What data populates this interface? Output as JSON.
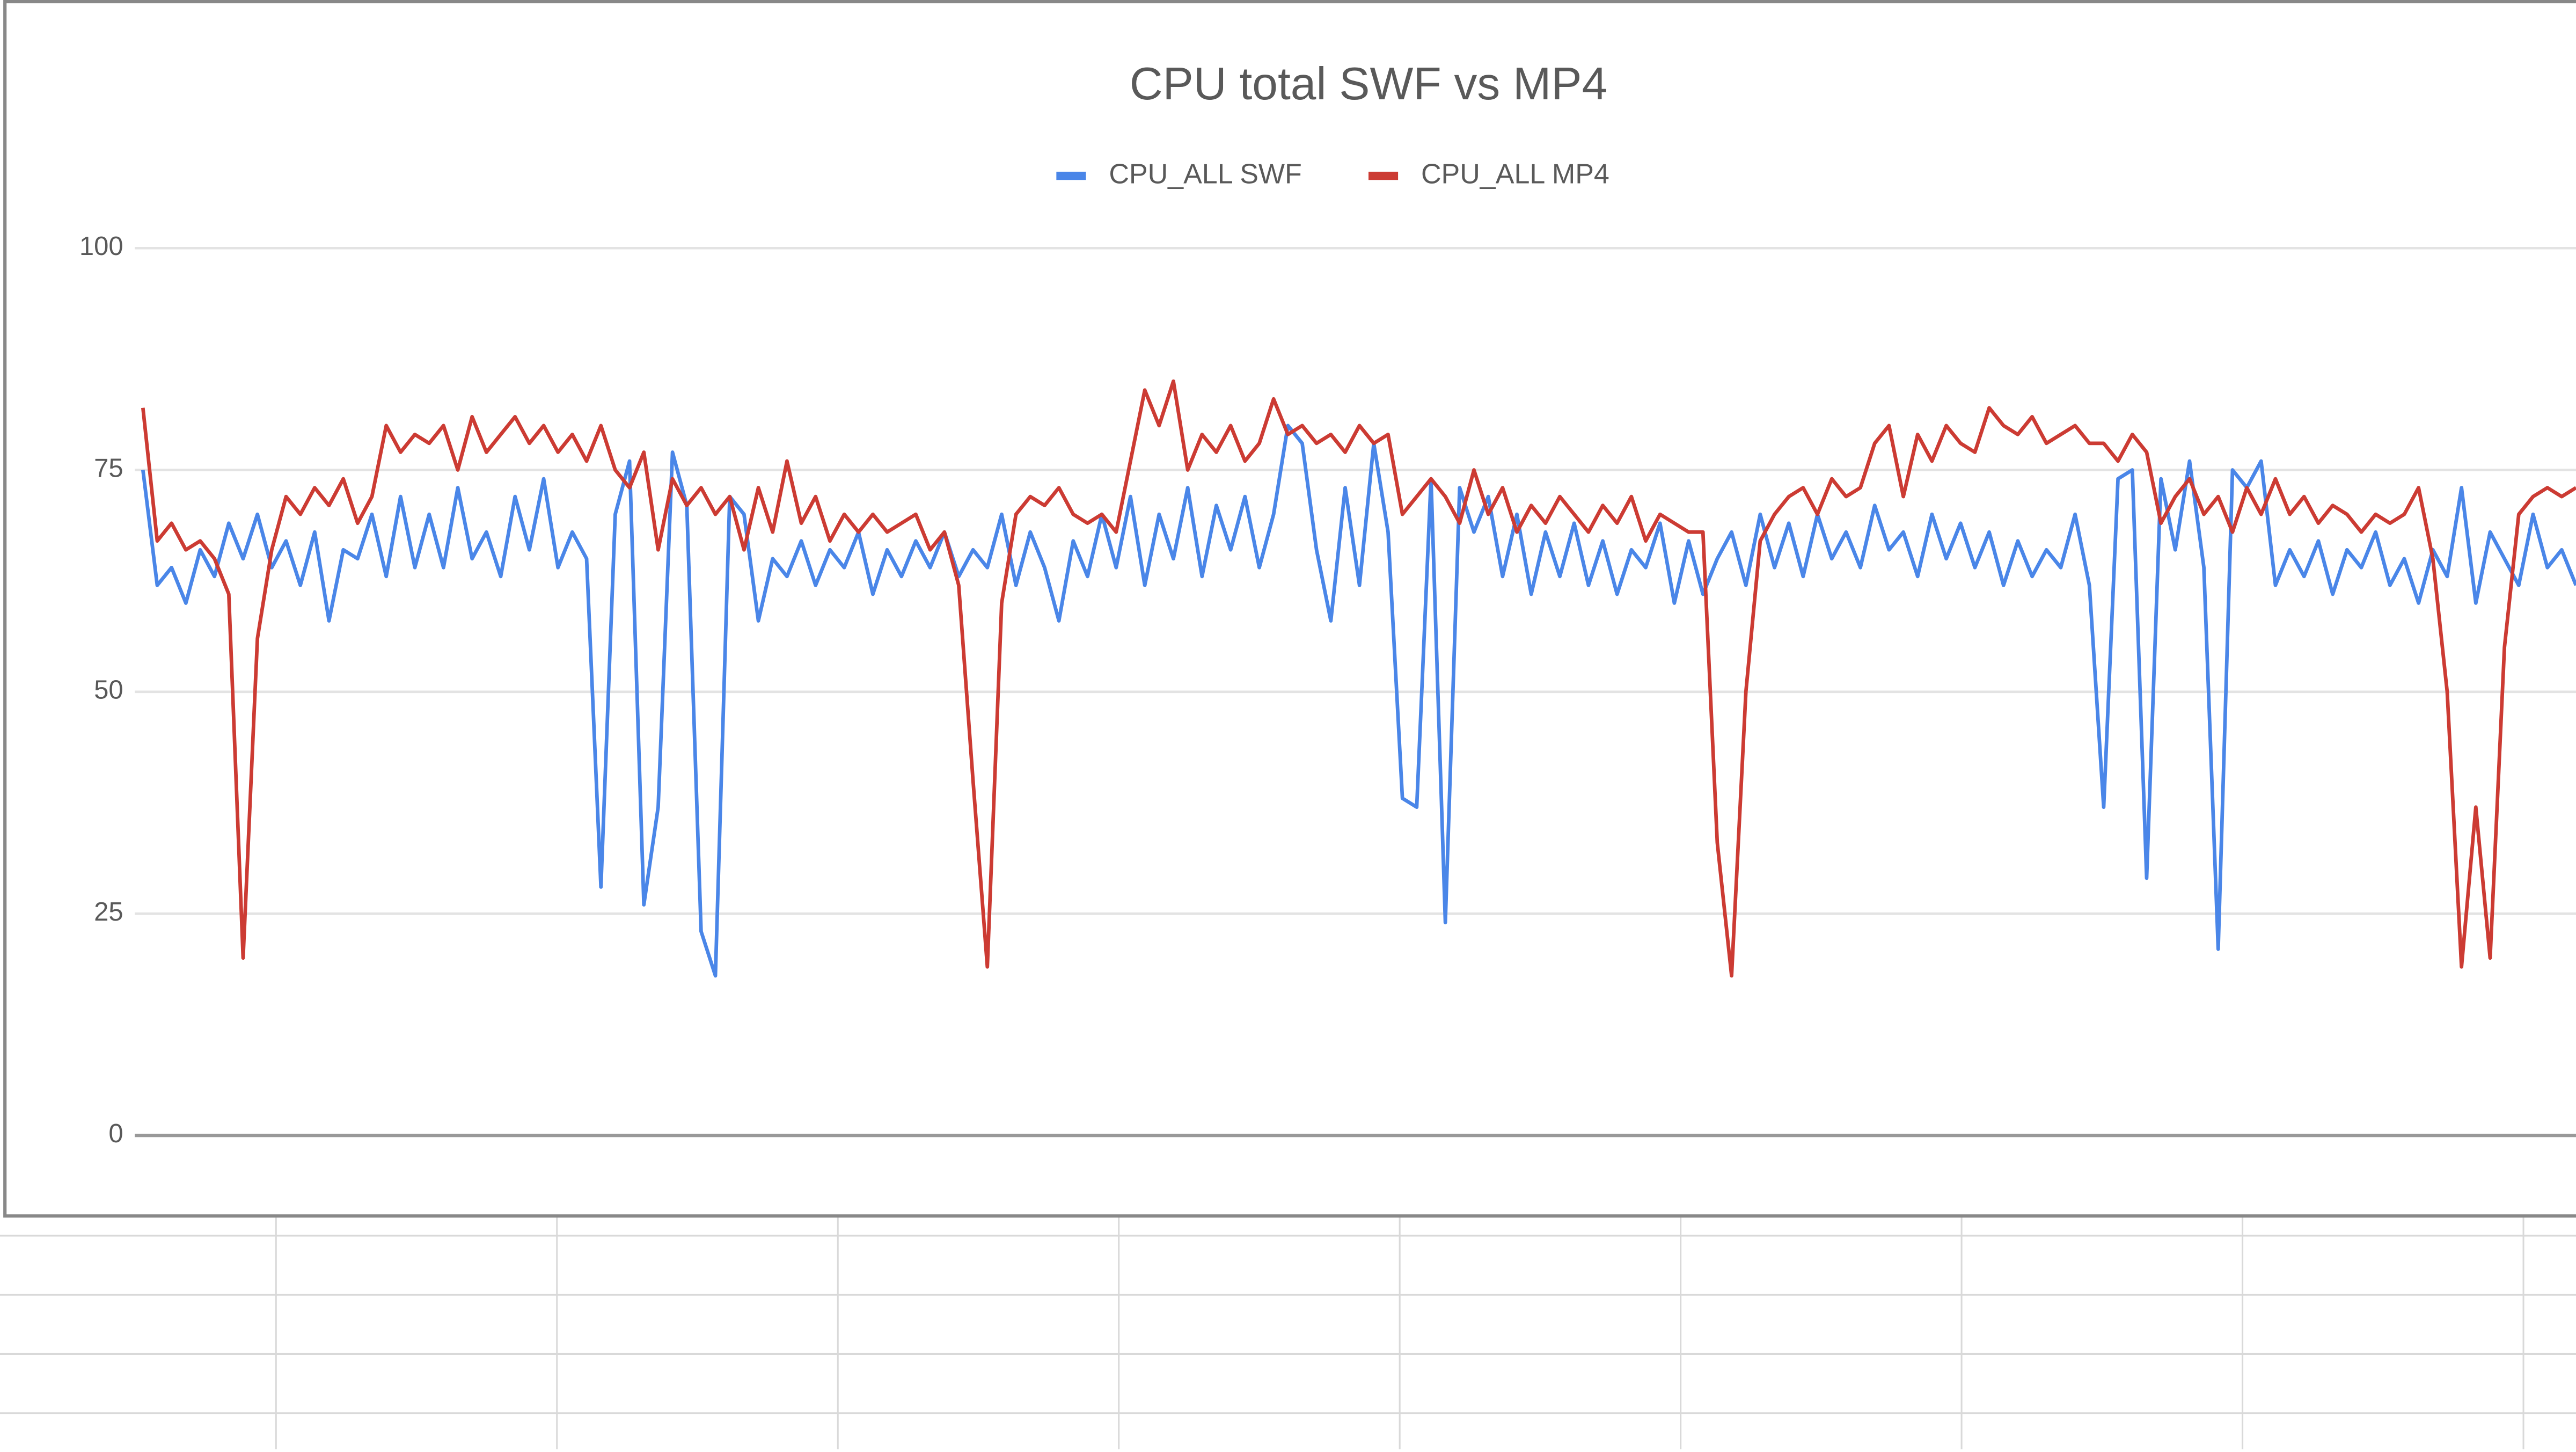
{
  "chart_data": {
    "type": "line",
    "title": "CPU total SWF vs MP4",
    "ylim": [
      0,
      100
    ],
    "yticks": [
      0,
      25,
      50,
      75,
      100
    ],
    "grid": true,
    "legend": "top",
    "series": [
      {
        "name": "CPU_ALL SWF",
        "color": "#4a86e8",
        "values": [
          75,
          62,
          64,
          60,
          66,
          63,
          69,
          65,
          70,
          64,
          67,
          62,
          68,
          58,
          66,
          65,
          70,
          63,
          72,
          64,
          70,
          64,
          73,
          65,
          68,
          63,
          72,
          66,
          74,
          64,
          68,
          65,
          28,
          70,
          76,
          26,
          37,
          77,
          71,
          23,
          18,
          72,
          70,
          58,
          65,
          63,
          67,
          62,
          66,
          64,
          68,
          61,
          66,
          63,
          67,
          64,
          68,
          63,
          66,
          64,
          70,
          62,
          68,
          64,
          58,
          67,
          63,
          70,
          64,
          72,
          62,
          70,
          65,
          73,
          63,
          71,
          66,
          72,
          64,
          70,
          80,
          78,
          66,
          58,
          73,
          62,
          78,
          68,
          38,
          37,
          74,
          24,
          73,
          68,
          72,
          63,
          70,
          61,
          68,
          63,
          69,
          62,
          67,
          61,
          66,
          64,
          69,
          60,
          67,
          61,
          65,
          68,
          62,
          70,
          64,
          69,
          63,
          70,
          65,
          68,
          64,
          71,
          66,
          68,
          63,
          70,
          65,
          69,
          64,
          68,
          62,
          67,
          63,
          66,
          64,
          70,
          62,
          37,
          74,
          75,
          29,
          74,
          66,
          76,
          64,
          21,
          75,
          73,
          76,
          62,
          66,
          63,
          67,
          61,
          66,
          64,
          68,
          62,
          65,
          60,
          66,
          63,
          73,
          60,
          68,
          65,
          62,
          70,
          64,
          66,
          62
        ]
      },
      {
        "name": "CPU_ALL MP4",
        "color": "#cc3b33",
        "values": [
          82,
          67,
          69,
          66,
          67,
          65,
          61,
          20,
          56,
          66,
          72,
          70,
          73,
          71,
          74,
          69,
          72,
          80,
          77,
          79,
          78,
          80,
          75,
          81,
          77,
          79,
          81,
          78,
          80,
          77,
          79,
          76,
          80,
          75,
          73,
          77,
          66,
          74,
          71,
          73,
          70,
          72,
          66,
          73,
          68,
          76,
          69,
          72,
          67,
          70,
          68,
          70,
          68,
          69,
          70,
          66,
          68,
          62,
          40,
          19,
          60,
          70,
          72,
          71,
          73,
          70,
          69,
          70,
          68,
          76,
          84,
          80,
          85,
          75,
          79,
          77,
          80,
          76,
          78,
          83,
          79,
          80,
          78,
          79,
          77,
          80,
          78,
          79,
          70,
          72,
          74,
          72,
          69,
          75,
          70,
          73,
          68,
          71,
          69,
          72,
          70,
          68,
          71,
          69,
          72,
          67,
          70,
          69,
          68,
          68,
          33,
          18,
          50,
          67,
          70,
          72,
          73,
          70,
          74,
          72,
          73,
          78,
          80,
          72,
          79,
          76,
          80,
          78,
          77,
          82,
          80,
          79,
          81,
          78,
          79,
          80,
          78,
          78,
          76,
          79,
          77,
          69,
          72,
          74,
          70,
          72,
          68,
          73,
          70,
          74,
          70,
          72,
          69,
          71,
          70,
          68,
          70,
          69,
          70,
          73,
          65,
          50,
          19,
          37,
          20,
          55,
          70,
          72,
          73,
          72,
          73
        ]
      }
    ]
  }
}
